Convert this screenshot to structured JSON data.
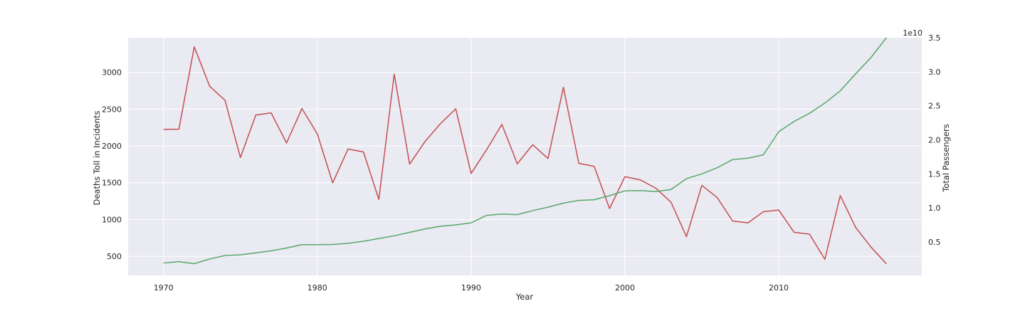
{
  "chart_data": {
    "type": "line",
    "xlabel": "Year",
    "ylabel_left": "Deaths Toll in Incidents",
    "ylabel_right": "Total Passengers",
    "right_axis_offset_text": "1e10",
    "xlim": [
      1967.7,
      2019.3
    ],
    "ylim_left": [
      240,
      3470
    ],
    "ylim_right": [
      0.00765,
      3.5
    ],
    "x_ticks": [
      1970,
      1980,
      1990,
      2000,
      2010
    ],
    "y_ticks_left": [
      500,
      1000,
      1500,
      2000,
      2500,
      3000
    ],
    "y_ticks_right": [
      0.5,
      1.0,
      1.5,
      2.0,
      2.5,
      3.0,
      3.5
    ],
    "y_tick_labels_right": [
      "0.5",
      "1.0",
      "1.5",
      "2.0",
      "2.5",
      "3.0",
      "3.5"
    ],
    "grid": true,
    "x": [
      1970,
      1971,
      1972,
      1973,
      1974,
      1975,
      1976,
      1977,
      1978,
      1979,
      1980,
      1981,
      1982,
      1983,
      1984,
      1985,
      1986,
      1987,
      1988,
      1989,
      1990,
      1991,
      1992,
      1993,
      1994,
      1995,
      1996,
      1997,
      1998,
      1999,
      2000,
      2001,
      2002,
      2003,
      2004,
      2005,
      2006,
      2007,
      2008,
      2009,
      2010,
      2011,
      2012,
      2013,
      2014,
      2015,
      2016,
      2017
    ],
    "series": [
      {
        "axis": "left",
        "color": "#c44e52",
        "values": [
          2225,
          2227,
          3346,
          2811,
          2620,
          1842,
          2419,
          2448,
          2040,
          2508,
          2163,
          1498,
          1958,
          1918,
          1272,
          2975,
          1753,
          2059,
          2301,
          2504,
          1626,
          1946,
          2293,
          1756,
          2016,
          1829,
          2796,
          1763,
          1722,
          1149,
          1582,
          1538,
          1426,
          1234,
          767,
          1464,
          1298,
          980,
          954,
          1105,
          1128,
          826,
          801,
          459,
          1325,
          892,
          625,
          397
        ]
      },
      {
        "axis": "right",
        "color": "#55a868",
        "values": [
          0.19,
          0.21,
          0.18,
          0.25,
          0.3,
          0.31,
          0.34,
          0.37,
          0.41,
          0.46,
          0.46,
          0.463,
          0.48,
          0.51,
          0.55,
          0.59,
          0.64,
          0.69,
          0.73,
          0.75,
          0.78,
          0.89,
          0.91,
          0.9,
          0.96,
          1.01,
          1.07,
          1.11,
          1.12,
          1.18,
          1.25,
          1.255,
          1.24,
          1.27,
          1.43,
          1.5,
          1.59,
          1.71,
          1.73,
          1.78,
          2.12,
          2.27,
          2.39,
          2.54,
          2.72,
          2.97,
          3.21,
          3.5
        ]
      }
    ]
  }
}
